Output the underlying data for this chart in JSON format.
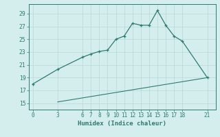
{
  "line1_x": [
    0,
    3,
    6,
    7,
    8,
    9,
    10,
    11,
    12,
    13,
    14,
    15,
    16,
    17,
    18,
    21
  ],
  "line1_y": [
    18.0,
    20.3,
    22.2,
    22.7,
    23.1,
    23.3,
    25.0,
    25.5,
    27.5,
    27.2,
    27.2,
    29.5,
    27.2,
    25.5,
    24.7,
    19.0
  ],
  "line2_x": [
    3,
    21
  ],
  "line2_y": [
    15.2,
    19.0
  ],
  "xticks": [
    0,
    3,
    6,
    7,
    8,
    9,
    10,
    11,
    12,
    13,
    14,
    15,
    16,
    17,
    18,
    21
  ],
  "yticks": [
    15,
    17,
    19,
    21,
    23,
    25,
    27,
    29
  ],
  "xlim": [
    -0.5,
    22
  ],
  "ylim": [
    14.0,
    30.5
  ],
  "xlabel": "Humidex (Indice chaleur)",
  "line_color": "#2d7a6e",
  "bg_color": "#d4eeed",
  "grid_color": "#b8d8d5"
}
